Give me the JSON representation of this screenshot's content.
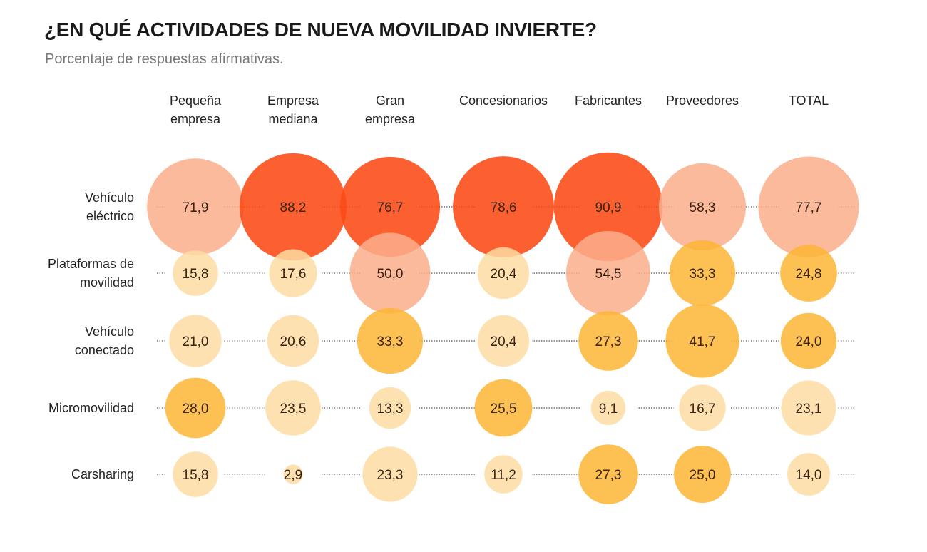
{
  "chart_data": {
    "type": "bubble-matrix",
    "title": "¿EN QUÉ ACTIVIDADES DE NUEVA MOVILIDAD INVIERTE?",
    "subtitle": "Porcentaje de respuestas afirmativas.",
    "columns": [
      [
        "Pequeña",
        "empresa"
      ],
      [
        "Empresa",
        "mediana"
      ],
      [
        "Gran",
        "empresa"
      ],
      [
        "Concesionarios"
      ],
      [
        "Fabricantes"
      ],
      [
        "Proveedores"
      ],
      [
        "TOTAL"
      ]
    ],
    "rows": [
      {
        "label": [
          "Vehículo",
          "eléctrico"
        ],
        "values": [
          "71,9",
          "88,2",
          "76,7",
          "78,6",
          "90,9",
          "58,3",
          "77,7"
        ],
        "colors": [
          "salmon",
          "red",
          "red",
          "red",
          "red",
          "salmon",
          "salmon"
        ]
      },
      {
        "label": [
          "Plataformas de",
          "movilidad"
        ],
        "values": [
          "15,8",
          "17,6",
          "50,0",
          "20,4",
          "54,5",
          "33,3",
          "24,8"
        ],
        "colors": [
          "light",
          "light",
          "salmon",
          "light",
          "salmon",
          "amber",
          "amber"
        ]
      },
      {
        "label": [
          "Vehículo",
          "conectado"
        ],
        "values": [
          "21,0",
          "20,6",
          "33,3",
          "20,4",
          "27,3",
          "41,7",
          "24,0"
        ],
        "colors": [
          "light",
          "light",
          "amber",
          "light",
          "amber",
          "amber",
          "amber"
        ]
      },
      {
        "label": [
          "Micromovilidad"
        ],
        "values": [
          "28,0",
          "23,5",
          "13,3",
          "25,5",
          "9,1",
          "16,7",
          "23,1"
        ],
        "colors": [
          "amber",
          "light",
          "light",
          "amber",
          "light",
          "light",
          "light"
        ]
      },
      {
        "label": [
          "Carsharing"
        ],
        "values": [
          "15,8",
          "2,9",
          "23,3",
          "11,2",
          "27,3",
          "25,0",
          "14,0"
        ],
        "colors": [
          "light",
          "light",
          "light",
          "light",
          "amber",
          "amber",
          "light"
        ]
      }
    ],
    "palette": {
      "light": "#fddca2",
      "amber": "#fdb535",
      "salmon": "#fcae8c",
      "red": "#fc4a14"
    }
  }
}
